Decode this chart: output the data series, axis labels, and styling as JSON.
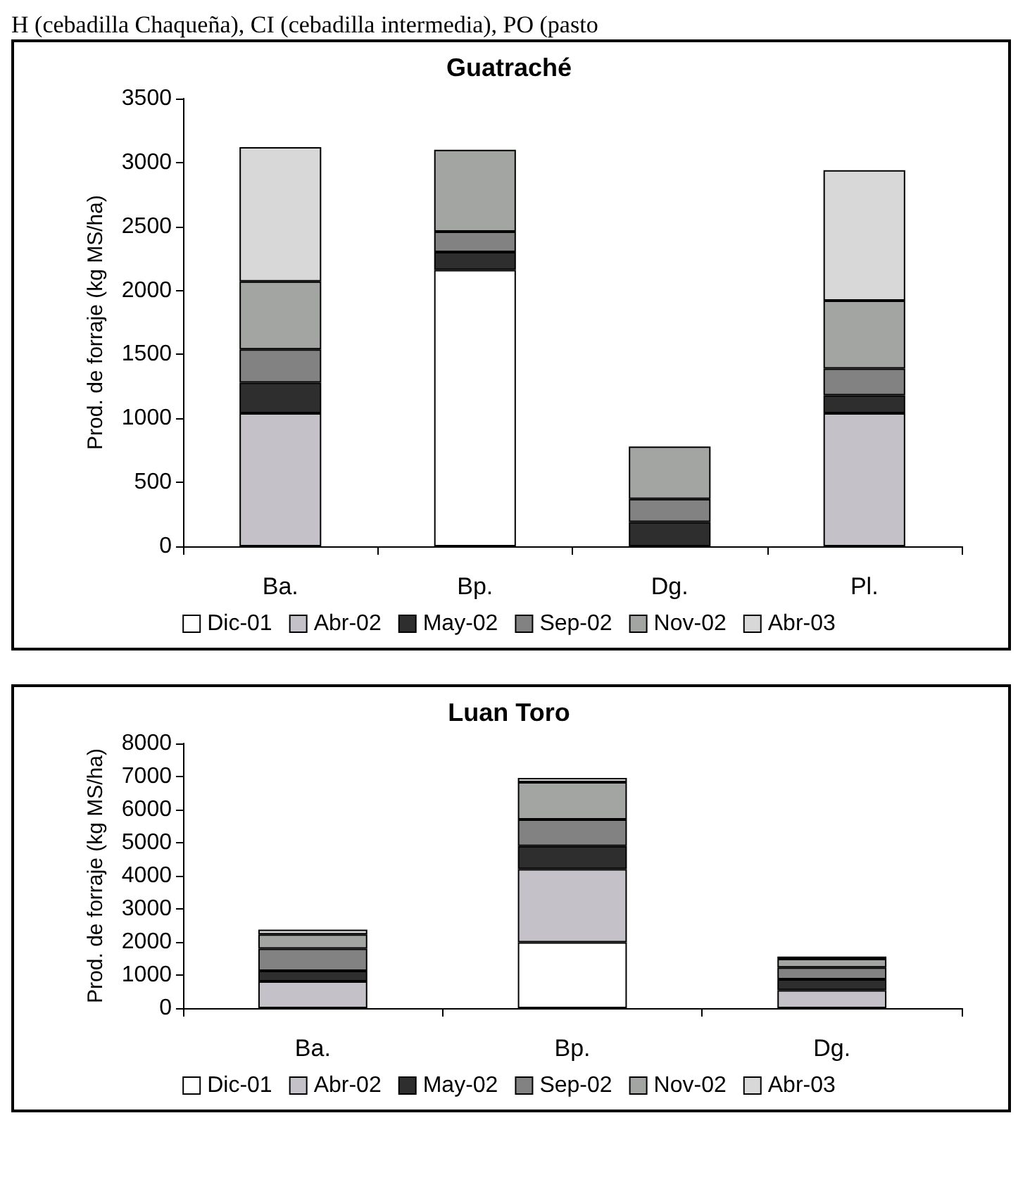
{
  "chart_data": [
    {
      "type": "bar",
      "title": "Guatraché",
      "ylabel": "Prod. de forraje (kg MS/ha)",
      "annotations": [
        "H (cebadilla Chaqueña), CI (cebadilla intermedia), PO (pasto"
      ],
      "categories": [
        "Ba.",
        "Bp.",
        "Dg.",
        "Pl."
      ],
      "stacked": true,
      "ylim": [
        0,
        3500
      ],
      "yticks": [
        0,
        500,
        1000,
        1500,
        2000,
        2500,
        3000,
        3500
      ],
      "grid": false,
      "legend": "bottom",
      "series": [
        {
          "name": "Dic-01",
          "color": "#ffffff",
          "values": [
            0,
            2160,
            0,
            0
          ]
        },
        {
          "name": "Abr-02",
          "color": "#c4c2c8",
          "values": [
            1040,
            0,
            0,
            1040
          ]
        },
        {
          "name": "May-02",
          "color": "#2e2e2e",
          "values": [
            240,
            140,
            190,
            140
          ]
        },
        {
          "name": "Sep-02",
          "color": "#828282",
          "values": [
            260,
            160,
            180,
            210
          ]
        },
        {
          "name": "Nov-02",
          "color": "#a2a5a2",
          "values": [
            530,
            640,
            410,
            530
          ]
        },
        {
          "name": "Abr-03",
          "color": "#d8d8d8",
          "values": [
            1050,
            0,
            0,
            1020
          ]
        }
      ]
    },
    {
      "type": "bar",
      "title": "Luan Toro",
      "ylabel": "Prod. de forraje (kg MS/ha)",
      "categories": [
        "Ba.",
        "Bp.",
        "Dg."
      ],
      "stacked": true,
      "ylim": [
        0,
        8000
      ],
      "yticks": [
        0,
        1000,
        2000,
        3000,
        4000,
        5000,
        6000,
        7000,
        8000
      ],
      "grid": false,
      "legend": "bottom",
      "series": [
        {
          "name": "Dic-01",
          "color": "#ffffff",
          "values": [
            0,
            1990,
            0
          ]
        },
        {
          "name": "Abr-02",
          "color": "#c4c2c8",
          "values": [
            810,
            2210,
            540
          ]
        },
        {
          "name": "May-02",
          "color": "#2e2e2e",
          "values": [
            320,
            700,
            330
          ]
        },
        {
          "name": "Sep-02",
          "color": "#828282",
          "values": [
            670,
            800,
            360
          ]
        },
        {
          "name": "Nov-02",
          "color": "#a2a5a2",
          "values": [
            430,
            1130,
            260
          ]
        },
        {
          "name": "Abr-03",
          "color": "#d8d8d8",
          "values": [
            140,
            130,
            70
          ]
        }
      ]
    }
  ]
}
